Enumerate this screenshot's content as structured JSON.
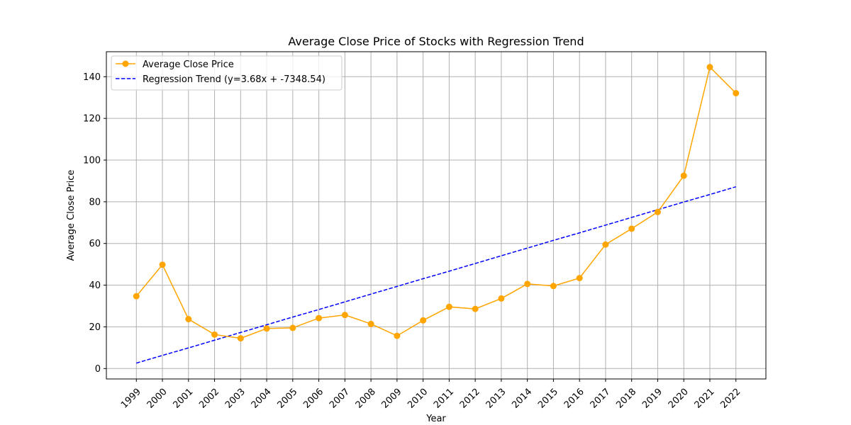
{
  "chart_data": {
    "type": "line",
    "title": "Average Close Price of Stocks with Regression Trend",
    "xlabel": "Year",
    "ylabel": "Average Close Price",
    "x": [
      1999,
      2000,
      2001,
      2002,
      2003,
      2004,
      2005,
      2006,
      2007,
      2008,
      2009,
      2010,
      2011,
      2012,
      2013,
      2014,
      2015,
      2016,
      2017,
      2018,
      2019,
      2020,
      2021,
      2022
    ],
    "x_tick_labels": [
      "1999",
      "2000",
      "2001",
      "2002",
      "2003",
      "2004",
      "2005",
      "2006",
      "2007",
      "2008",
      "2009",
      "2010",
      "2011",
      "2012",
      "2013",
      "2014",
      "2015",
      "2016",
      "2017",
      "2018",
      "2019",
      "2020",
      "2021",
      "2022"
    ],
    "y_ticks": [
      0,
      20,
      40,
      60,
      80,
      100,
      120,
      140
    ],
    "y_tick_labels": [
      "0",
      "20",
      "40",
      "60",
      "80",
      "100",
      "120",
      "140"
    ],
    "ylim": [
      -5,
      152
    ],
    "xlim": [
      1997.85,
      2023.15
    ],
    "grid": true,
    "legend_position": "top-left",
    "series": [
      {
        "name": "Average Close Price",
        "style": "solid-with-markers",
        "color": "#FFA500",
        "values": [
          34.7,
          49.8,
          23.7,
          16.3,
          14.5,
          19.2,
          19.5,
          24.2,
          25.7,
          21.4,
          15.7,
          23.1,
          29.6,
          28.6,
          33.6,
          40.6,
          39.6,
          43.4,
          59.5,
          67.1,
          75.1,
          92.5,
          144.6,
          132.1
        ]
      },
      {
        "name": "Regression Trend (y=3.68x + -7348.54)",
        "style": "dashed",
        "color": "#0000FF",
        "slope": 3.68,
        "intercept": -7348.54,
        "values": [
          2.6,
          6.3,
          9.9,
          13.6,
          17.3,
          21.0,
          24.7,
          28.3,
          32.0,
          35.7,
          39.4,
          43.1,
          46.7,
          50.4,
          54.1,
          57.8,
          61.5,
          65.1,
          68.8,
          72.5,
          76.2,
          79.9,
          83.5,
          87.2
        ]
      }
    ]
  }
}
